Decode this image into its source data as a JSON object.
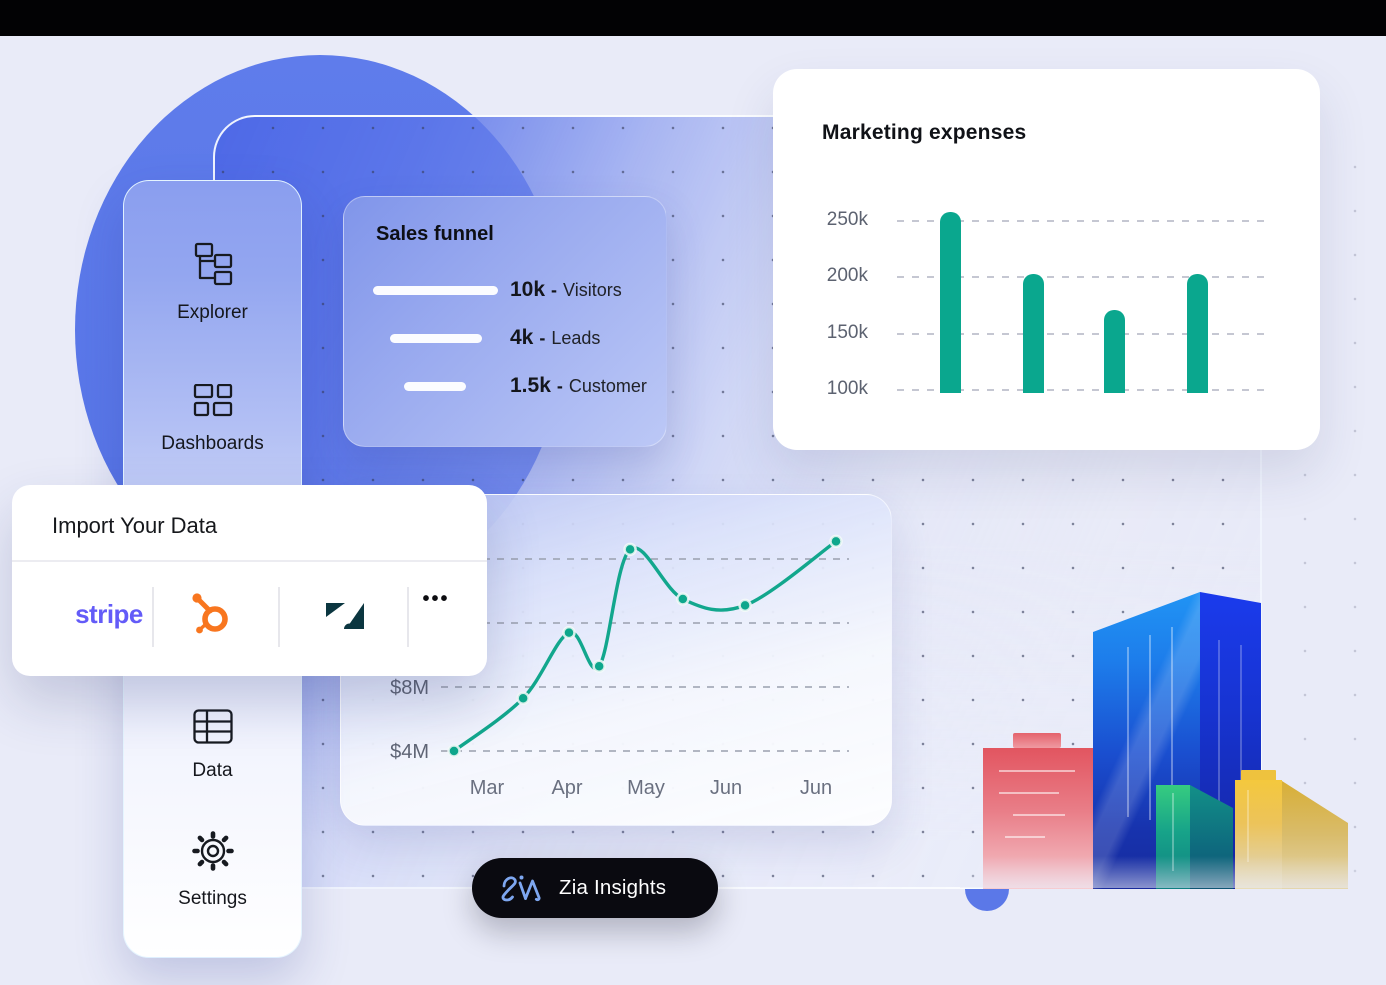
{
  "sidebar": {
    "items": [
      {
        "icon": "explorer-tree-icon",
        "label": "Explorer"
      },
      {
        "icon": "dashboards-grid-icon",
        "label": "Dashboards"
      },
      {
        "icon": "data-table-icon",
        "label": "Data"
      },
      {
        "icon": "settings-gear-icon",
        "label": "Settings"
      }
    ]
  },
  "sales_funnel": {
    "title": "Sales funnel",
    "rows": [
      {
        "value": "10k",
        "sep": "-",
        "label": "Visitors"
      },
      {
        "value": "4k",
        "sep": "-",
        "label": "Leads"
      },
      {
        "value": "1.5k",
        "sep": "-",
        "label": "Customer"
      }
    ]
  },
  "import_card": {
    "title": "Import Your Data",
    "stripe_label": "stripe",
    "integrations": [
      "stripe",
      "hubspot",
      "zendesk",
      "more"
    ],
    "more_label": "•••"
  },
  "zia": {
    "label": "Zia Insights"
  },
  "chart_data": [
    {
      "type": "bar",
      "title": "Marketing expenses",
      "categories": [
        "",
        "",
        "",
        ""
      ],
      "values": [
        258,
        203,
        171,
        203
      ],
      "unit": "k",
      "y_ticks": [
        {
          "label": "250k",
          "value": 250
        },
        {
          "label": "200k",
          "value": 200
        },
        {
          "label": "150k",
          "value": 150
        },
        {
          "label": "100k",
          "value": 100
        }
      ],
      "ylim": [
        100,
        270
      ],
      "bar_color": "#0aa78e",
      "gridlines": "dashed-horizontal",
      "legend": "none"
    },
    {
      "type": "line",
      "title": "",
      "x_labels": [
        "Mar",
        "Apr",
        "May",
        "Jun",
        "Jun"
      ],
      "points": [
        {
          "x_frac": 0.0,
          "value": 4.0
        },
        {
          "x_frac": 0.181,
          "value": 7.3
        },
        {
          "x_frac": 0.301,
          "value": 11.4
        },
        {
          "x_frac": 0.38,
          "value": 9.3
        },
        {
          "x_frac": 0.461,
          "value": 16.6
        },
        {
          "x_frac": 0.599,
          "value": 13.5
        },
        {
          "x_frac": 0.762,
          "value": 13.1
        },
        {
          "x_frac": 1.0,
          "value": 17.1
        }
      ],
      "y_ticks": [
        {
          "label": "$8M",
          "value": 8
        },
        {
          "label": "$4M",
          "value": 4
        }
      ],
      "gridline_values": [
        16,
        12,
        8,
        4
      ],
      "ylim": [
        2,
        18
      ],
      "line_color": "#12a78d",
      "point_color": "#0ea78c",
      "gridlines": "dashed-horizontal",
      "legend": "none"
    }
  ],
  "colors": {
    "background": "#e9ebf8",
    "circle_blue": "#5b79e8",
    "accent_teal": "#0aa78e",
    "stripe_purple": "#635bf8",
    "hubspot_orange": "#f8761f",
    "zendesk_ink": "#0b3640",
    "pill_black": "#0a0a10"
  }
}
